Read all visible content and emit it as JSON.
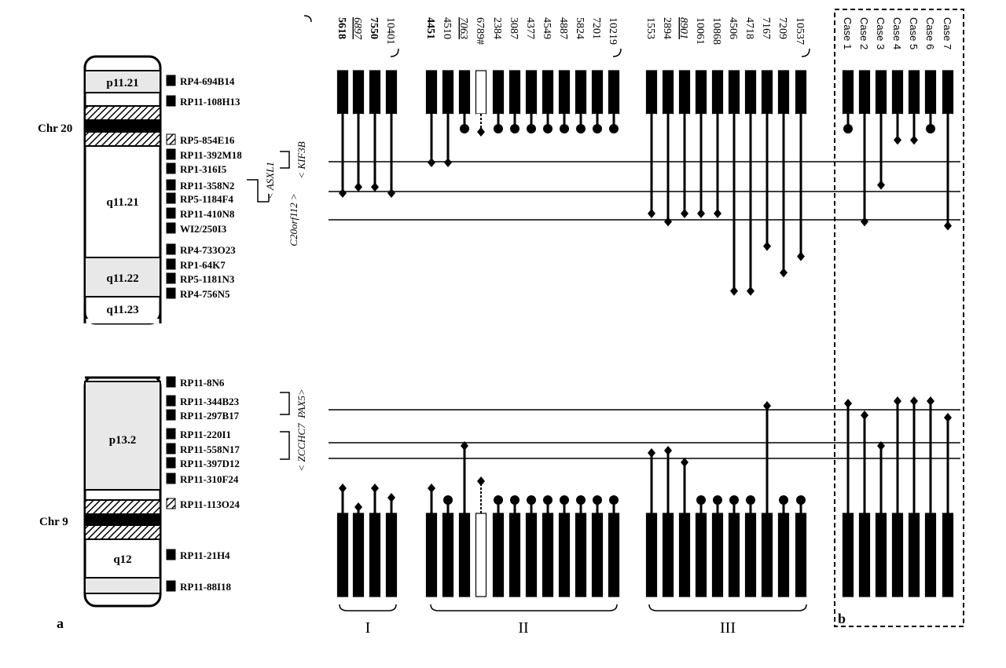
{
  "panels": {
    "a": "a",
    "b": "b"
  },
  "chromosomes": [
    {
      "name": "Chr 20",
      "bands": [
        "p11.21",
        "q11.21",
        "q11.22",
        "q11.23"
      ]
    },
    {
      "name": "Chr 9",
      "bands": [
        "p13.2",
        "q12"
      ]
    }
  ],
  "clones_chr20": [
    {
      "name": "RP4-694B14",
      "hatched": false
    },
    {
      "name": "RP11-108H13",
      "hatched": false
    },
    {
      "name": "RP5-854E16",
      "hatched": true
    },
    {
      "name": "RP11-392M18",
      "hatched": false
    },
    {
      "name": "RP1-316I5",
      "hatched": false
    },
    {
      "name": "RP11-358N2",
      "hatched": false
    },
    {
      "name": "RP5-1184F4",
      "hatched": false
    },
    {
      "name": "RP11-410N8",
      "hatched": false
    },
    {
      "name": "WI2/250I3",
      "hatched": false
    },
    {
      "name": "RP4-733O23",
      "hatched": false
    },
    {
      "name": "RP1-64K7",
      "hatched": false
    },
    {
      "name": "RP5-1181N3",
      "hatched": false
    },
    {
      "name": "RP4-756N5",
      "hatched": false
    }
  ],
  "clones_chr9": [
    {
      "name": "RP11-8N6",
      "hatched": false
    },
    {
      "name": "RP11-344B23",
      "hatched": false
    },
    {
      "name": "RP11-297B17",
      "hatched": false
    },
    {
      "name": "RP11-220I1",
      "hatched": false
    },
    {
      "name": "RP11-558N17",
      "hatched": false
    },
    {
      "name": "RP11-397D12",
      "hatched": false
    },
    {
      "name": "RP11-310F24",
      "hatched": false
    },
    {
      "name": "RP11-113O24",
      "hatched": true
    },
    {
      "name": "RP11-21H4",
      "hatched": false
    },
    {
      "name": "RP11-88I18",
      "hatched": false
    }
  ],
  "genes": [
    "< KIF3B",
    "< ASXL1",
    "C20orf112 >",
    "PAX5>",
    "< ZCCHC7"
  ],
  "groups": [
    "I",
    "II",
    "III"
  ],
  "columns": [
    {
      "label": "5618",
      "style": "bold",
      "group": 1,
      "top_end": "diamond",
      "top_level": 3,
      "bottom_end": "diamond",
      "bottom_level": 1
    },
    {
      "label": "6897",
      "style": "italic",
      "group": 1,
      "top_end": "diamond",
      "top_level": 2.7,
      "bottom_end": "diamond",
      "bottom_level": 0.2
    },
    {
      "label": "7550",
      "style": "bold",
      "group": 1,
      "top_end": "diamond",
      "top_level": 2.7,
      "bottom_end": "diamond",
      "bottom_level": 1
    },
    {
      "label": "10401",
      "style": "normal",
      "group": 1,
      "top_end": "diamond",
      "top_level": 3,
      "bottom_end": "diamond",
      "bottom_level": 0.6
    },
    {
      "label": "4451",
      "style": "bold",
      "group": 2,
      "top_end": "diamond",
      "top_level": 1.5,
      "bottom_end": "diamond",
      "bottom_level": 1
    },
    {
      "label": "4510",
      "style": "normal",
      "group": 2,
      "top_end": "diamond",
      "top_level": 1.5,
      "bottom_end": "dot",
      "bottom_level": 5.3
    },
    {
      "label": "7063",
      "style": "italic",
      "group": 2,
      "top_end": "dot",
      "top_level": 0,
      "bottom_end": "diamond",
      "bottom_level": 2.8
    },
    {
      "label": "6789#",
      "style": "normal",
      "group": 2,
      "top_end": "diamond",
      "top_level": 0,
      "bottom_end": "diamond",
      "bottom_level": 1.3,
      "open": true
    },
    {
      "label": "2384",
      "style": "normal",
      "group": 2,
      "top_end": "dot",
      "top_level": 0,
      "bottom_end": "dot",
      "bottom_level": 5.3
    },
    {
      "label": "3087",
      "style": "normal",
      "group": 2,
      "top_end": "dot",
      "top_level": 0,
      "bottom_end": "dot",
      "bottom_level": 5.3
    },
    {
      "label": "4377",
      "style": "normal",
      "group": 2,
      "top_end": "dot",
      "top_level": 0,
      "bottom_end": "dot",
      "bottom_level": 5.3
    },
    {
      "label": "4549",
      "style": "normal",
      "group": 2,
      "top_end": "dot",
      "top_level": 0,
      "bottom_end": "dot",
      "bottom_level": 5.3
    },
    {
      "label": "4887",
      "style": "normal",
      "group": 2,
      "top_end": "dot",
      "top_level": 0,
      "bottom_end": "dot",
      "bottom_level": 5.3
    },
    {
      "label": "5824",
      "style": "normal",
      "group": 2,
      "top_end": "dot",
      "top_level": 0,
      "bottom_end": "dot",
      "bottom_level": 5.3
    },
    {
      "label": "7201",
      "style": "normal",
      "group": 2,
      "top_end": "dot",
      "top_level": 0,
      "bottom_end": "dot",
      "bottom_level": 5.3
    },
    {
      "label": "10219",
      "style": "normal",
      "group": 2,
      "top_end": "dot",
      "top_level": 0,
      "bottom_end": "dot",
      "bottom_level": 5.3
    },
    {
      "label": "1553",
      "style": "normal",
      "group": 3,
      "top_end": "diamond",
      "top_level": 4,
      "bottom_end": "diamond",
      "bottom_level": 2.5
    },
    {
      "label": "2894",
      "style": "normal",
      "group": 3,
      "top_end": "diamond",
      "top_level": 4.4,
      "bottom_end": "diamond",
      "bottom_level": 2.6
    },
    {
      "label": "8901",
      "style": "italic",
      "group": 3,
      "top_end": "diamond",
      "top_level": 4,
      "bottom_end": "diamond",
      "bottom_level": 2.1
    },
    {
      "label": "10061",
      "style": "normal",
      "group": 3,
      "top_end": "diamond",
      "top_level": 4,
      "bottom_end": "dot",
      "bottom_level": 5.3
    },
    {
      "label": "10868",
      "style": "normal",
      "group": 3,
      "top_end": "diamond",
      "top_level": 4,
      "bottom_end": "dot",
      "bottom_level": 5.3
    },
    {
      "label": "4506",
      "style": "normal",
      "group": 3,
      "top_end": "diamond",
      "top_level": 7.8,
      "bottom_end": "dot",
      "bottom_level": 5.3
    },
    {
      "label": "4718",
      "style": "normal",
      "group": 3,
      "top_end": "diamond",
      "top_level": 7.8,
      "bottom_end": "dot",
      "bottom_level": 5.3
    },
    {
      "label": "7167",
      "style": "normal",
      "group": 3,
      "top_end": "diamond",
      "top_level": 5.6,
      "bottom_end": "diamond",
      "bottom_level": 4.5
    },
    {
      "label": "7209",
      "style": "normal",
      "group": 3,
      "top_end": "diamond",
      "top_level": 6.9,
      "bottom_end": "dot",
      "bottom_level": 5.3
    },
    {
      "label": "10537",
      "style": "normal",
      "group": 3,
      "top_end": "diamond",
      "top_level": 6.1,
      "bottom_end": "dot",
      "bottom_level": 5.3
    },
    {
      "label": "Case 1",
      "style": "sans",
      "group": 4,
      "top_end": "dot",
      "top_level": 0.2,
      "bottom_end": "diamond",
      "bottom_level": 4.6
    },
    {
      "label": "Case 2",
      "style": "sans",
      "group": 4,
      "top_end": "diamond",
      "top_level": 4.4,
      "bottom_end": "diamond",
      "bottom_level": 4.1
    },
    {
      "label": "Case 3",
      "style": "sans",
      "group": 4,
      "top_end": "diamond",
      "top_level": 2.6,
      "bottom_end": "diamond",
      "bottom_level": 2.8
    },
    {
      "label": "Case 4",
      "style": "sans",
      "group": 4,
      "top_end": "diamond",
      "top_level": 0.4,
      "bottom_end": "diamond",
      "bottom_level": 4.7
    },
    {
      "label": "Case 5",
      "style": "sans",
      "group": 4,
      "top_end": "diamond",
      "top_level": 0.4,
      "bottom_end": "diamond",
      "bottom_level": 4.7
    },
    {
      "label": "Case 6",
      "style": "sans",
      "group": 4,
      "top_end": "dot",
      "top_level": 0.2,
      "bottom_end": "diamond",
      "bottom_level": 4.7
    },
    {
      "label": "Case 7",
      "style": "sans",
      "group": 4,
      "top_end": "diamond",
      "top_level": 4.6,
      "bottom_end": "diamond",
      "bottom_level": 4
    }
  ],
  "colors": {
    "ink": "#000000",
    "band_fill": "#e8e8e8",
    "background": "#ffffff"
  }
}
